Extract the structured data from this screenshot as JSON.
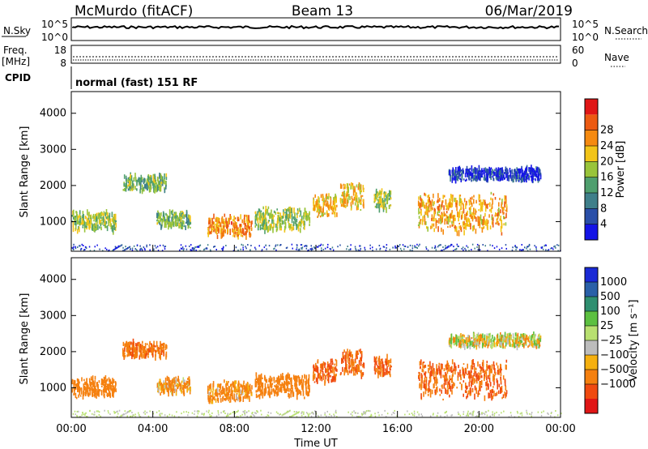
{
  "header": {
    "station": "McMurdo (fitACF)",
    "beam": "Beam 13",
    "date": "06/Mar/2019"
  },
  "noise_panel": {
    "left_label": "N.Sky",
    "left_ticks": [
      "10^5",
      "10^0"
    ],
    "right_ticks": [
      "10^5",
      "10^0"
    ],
    "right_label": "N.Search"
  },
  "freq_panel": {
    "left_label_1": "Freq.",
    "left_label_2": "[MHz]",
    "left_ticks": [
      "18",
      "8"
    ],
    "right_ticks": [
      "60",
      "0"
    ],
    "right_label": "Nave"
  },
  "cpid": {
    "label": "CPID",
    "mode": "normal (fast) 151 RF"
  },
  "colors": {
    "power_scale": [
      "#1414e6",
      "#2a4fa8",
      "#3f7f8a",
      "#4f9f6e",
      "#99c43a",
      "#f2c418",
      "#f58a10",
      "#ec5a12",
      "#e01616"
    ],
    "velocity_scale": [
      "#e01616",
      "#f04a10",
      "#f5800f",
      "#f5b010",
      "#bcbcbc",
      "#b8e070",
      "#5cc040",
      "#2f8f70",
      "#2a60a8",
      "#1a2ad6"
    ]
  },
  "chart_data": [
    {
      "type": "heatmap",
      "panel": "power",
      "ylabel": "Slant Range [km]",
      "xlim": [
        "00:00",
        "24:00"
      ],
      "ylim": [
        180,
        4600
      ],
      "yticks": [
        "1000",
        "2000",
        "3000",
        "4000"
      ],
      "colorbar": {
        "label": "Power [dB]",
        "ticks": [
          "4",
          "8",
          "12",
          "16",
          "20",
          "24",
          "28"
        ]
      },
      "echo_regions": [
        {
          "x_start": "00:00",
          "x_end": "02:10",
          "range_min": 700,
          "range_max": 1300,
          "value": 16
        },
        {
          "x_start": "02:30",
          "x_end": "04:40",
          "range_min": 1800,
          "range_max": 2300,
          "value": 14
        },
        {
          "x_start": "04:10",
          "x_end": "05:50",
          "range_min": 800,
          "range_max": 1300,
          "value": 14
        },
        {
          "x_start": "06:40",
          "x_end": "08:50",
          "range_min": 550,
          "range_max": 1200,
          "value": 24
        },
        {
          "x_start": "09:00",
          "x_end": "11:40",
          "range_min": 700,
          "range_max": 1400,
          "value": 16
        },
        {
          "x_start": "11:50",
          "x_end": "13:00",
          "range_min": 1100,
          "range_max": 1800,
          "value": 20
        },
        {
          "x_start": "13:10",
          "x_end": "14:20",
          "range_min": 1300,
          "range_max": 2100,
          "value": 20
        },
        {
          "x_start": "14:50",
          "x_end": "15:40",
          "range_min": 1300,
          "range_max": 1900,
          "value": 16
        },
        {
          "x_start": "17:00",
          "x_end": "21:20",
          "range_min": 650,
          "range_max": 1800,
          "value": 22
        },
        {
          "x_start": "18:30",
          "x_end": "23:00",
          "range_min": 2100,
          "range_max": 2500,
          "value": 4
        }
      ]
    },
    {
      "type": "heatmap",
      "panel": "velocity",
      "ylabel": "Slant Range [km]",
      "xlabel": "Time UT",
      "xlim": [
        "00:00",
        "24:00"
      ],
      "ylim": [
        180,
        4600
      ],
      "xticks": [
        "00:00",
        "04:00",
        "08:00",
        "12:00",
        "16:00",
        "20:00",
        "00:00"
      ],
      "yticks": [
        "1000",
        "2000",
        "3000",
        "4000"
      ],
      "colorbar": {
        "label": "Velocity [m s⁻¹]",
        "ticks": [
          "1000",
          "500",
          "100",
          "25",
          "−25",
          "−100",
          "−500",
          "−1000"
        ]
      },
      "echo_regions": [
        {
          "x_start": "00:00",
          "x_end": "02:10",
          "range_min": 700,
          "range_max": 1300,
          "value": -300
        },
        {
          "x_start": "02:30",
          "x_end": "04:40",
          "range_min": 1800,
          "range_max": 2300,
          "value": -400
        },
        {
          "x_start": "04:10",
          "x_end": "05:50",
          "range_min": 800,
          "range_max": 1300,
          "value": -150
        },
        {
          "x_start": "06:40",
          "x_end": "08:50",
          "range_min": 550,
          "range_max": 1200,
          "value": -200
        },
        {
          "x_start": "09:00",
          "x_end": "11:40",
          "range_min": 700,
          "range_max": 1400,
          "value": -300
        },
        {
          "x_start": "11:50",
          "x_end": "13:00",
          "range_min": 1100,
          "range_max": 1800,
          "value": -500
        },
        {
          "x_start": "13:10",
          "x_end": "14:20",
          "range_min": 1300,
          "range_max": 2100,
          "value": -500
        },
        {
          "x_start": "14:50",
          "x_end": "15:40",
          "range_min": 1300,
          "range_max": 1900,
          "value": -500
        },
        {
          "x_start": "17:00",
          "x_end": "21:20",
          "range_min": 650,
          "range_max": 1800,
          "value": -500
        },
        {
          "x_start": "18:30",
          "x_end": "23:00",
          "range_min": 2100,
          "range_max": 2500,
          "value": 0
        }
      ]
    }
  ]
}
